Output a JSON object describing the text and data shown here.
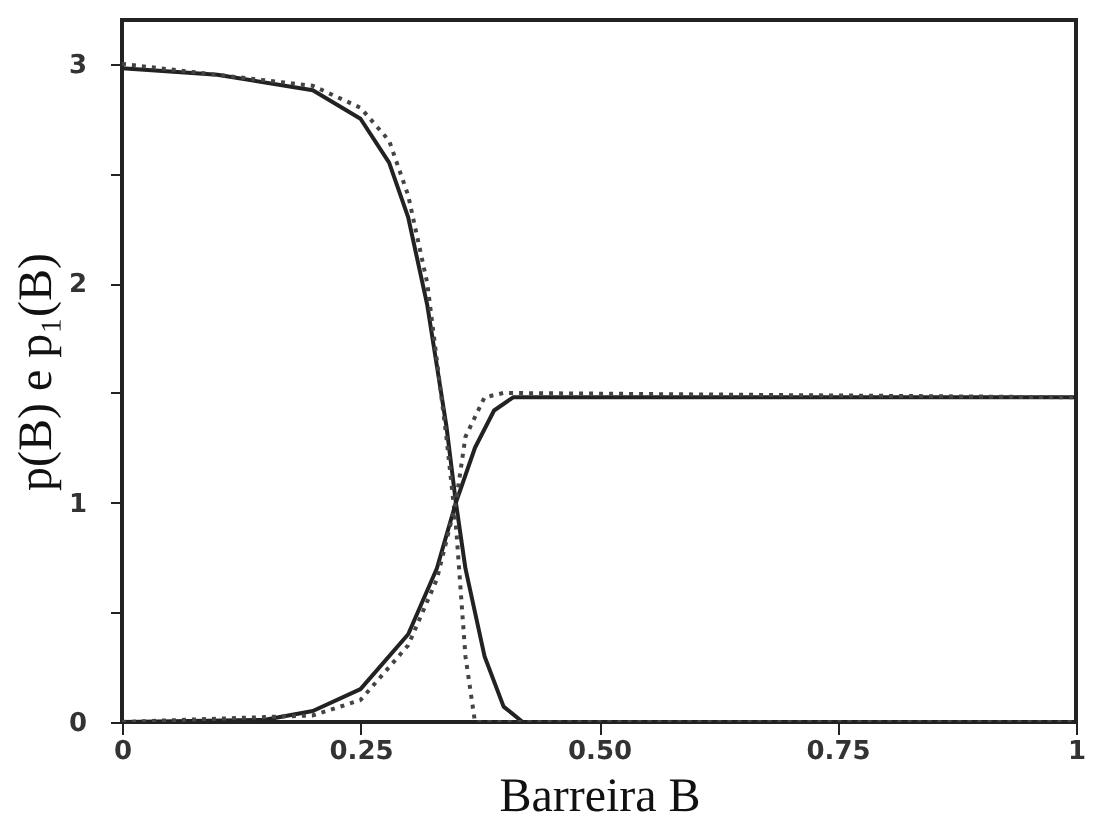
{
  "chart_data": {
    "type": "line",
    "xlabel": "Barreira B",
    "ylabel": "p(B) e p₁(B)",
    "xlim": [
      0,
      1
    ],
    "ylim": [
      0,
      3.2
    ],
    "xticks": [
      0,
      0.25,
      {
        "value": 0.5,
        "label": "0.50"
      },
      0.75,
      1
    ],
    "yticks": [
      0,
      {
        "value": 0.5,
        "label": null
      },
      1,
      {
        "value": 1.5,
        "label": null
      },
      2,
      {
        "value": 2.5,
        "label": null
      },
      3
    ],
    "grid": false,
    "legend": false,
    "marker": "none",
    "series": [
      {
        "color": "#222222",
        "line_style": "solid",
        "x": [
          0,
          0.1,
          0.2,
          0.25,
          0.28,
          0.3,
          0.32,
          0.34,
          0.35,
          0.36,
          0.38,
          0.4,
          0.42,
          1
        ],
        "values": [
          2.98,
          2.95,
          2.88,
          2.75,
          2.55,
          2.3,
          1.9,
          1.35,
          1.0,
          0.7,
          0.3,
          0.07,
          0,
          0
        ]
      },
      {
        "color": "#444444",
        "line_style": "dotted",
        "x": [
          0,
          0.2,
          0.25,
          0.28,
          0.3,
          0.32,
          0.34,
          0.35,
          0.36,
          0.37,
          1
        ],
        "values": [
          3.0,
          2.9,
          2.8,
          2.65,
          2.4,
          2.0,
          1.3,
          0.9,
          0.3,
          0,
          0
        ]
      },
      {
        "color": "#222222",
        "line_style": "solid",
        "x": [
          0,
          0.15,
          0.2,
          0.25,
          0.3,
          0.33,
          0.35,
          0.37,
          0.39,
          0.41,
          1
        ],
        "values": [
          0,
          0.01,
          0.05,
          0.15,
          0.4,
          0.7,
          1.0,
          1.25,
          1.42,
          1.48,
          1.48
        ]
      },
      {
        "color": "#444444",
        "line_style": "dotted",
        "x": [
          0,
          0.2,
          0.25,
          0.3,
          0.33,
          0.35,
          0.36,
          0.38,
          0.4,
          1
        ],
        "values": [
          0,
          0.03,
          0.1,
          0.35,
          0.65,
          1.0,
          1.3,
          1.48,
          1.5,
          1.48
        ]
      }
    ]
  }
}
